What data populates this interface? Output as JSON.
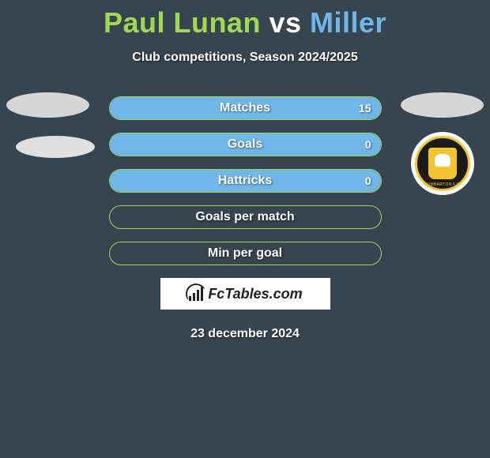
{
  "colors": {
    "background": "#36454f",
    "player1": "#a2d851",
    "player2": "#6fb7e8",
    "bar_border": "#a2d851",
    "bar_fill": "#6fb7e8",
    "text": "#ffffff",
    "brand_box_bg": "#ffffff",
    "brand_text": "#222222"
  },
  "title": {
    "player1": "Paul Lunan",
    "vs": "vs",
    "player2": "Miller"
  },
  "subtitle": "Club competitions, Season 2024/2025",
  "stats": [
    {
      "label": "Matches",
      "value_right": "15",
      "fill_pct": 100
    },
    {
      "label": "Goals",
      "value_right": "0",
      "fill_pct": 100
    },
    {
      "label": "Hattricks",
      "value_right": "0",
      "fill_pct": 100
    },
    {
      "label": "Goals per match",
      "value_right": "",
      "fill_pct": 0
    },
    {
      "label": "Min per goal",
      "value_right": "",
      "fill_pct": 0
    }
  ],
  "brand": "FcTables.com",
  "date": "23 december 2024",
  "badge": {
    "club": "DUMBARTON F.C."
  }
}
